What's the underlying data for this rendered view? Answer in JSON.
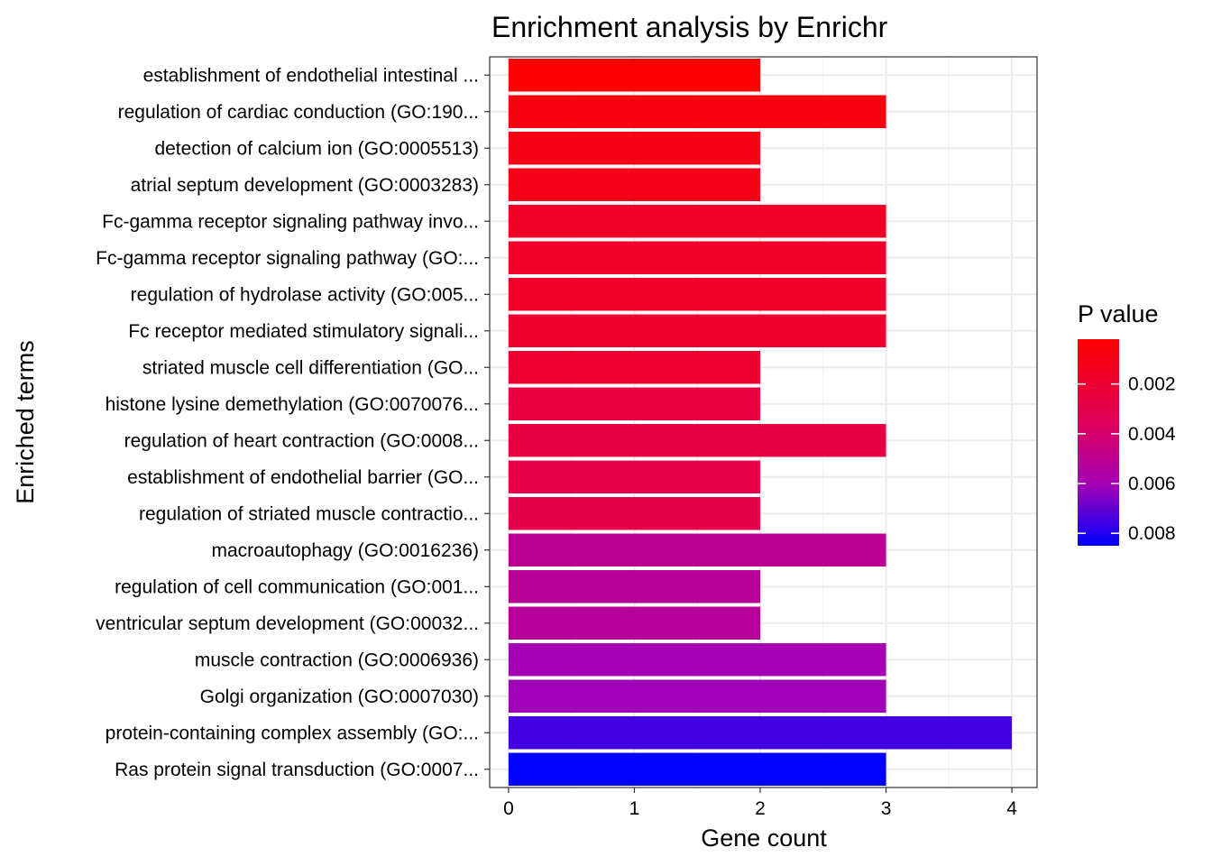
{
  "chart_data": {
    "type": "bar",
    "orientation": "horizontal",
    "title": "Enrichment analysis by Enrichr",
    "xlabel": "Gene count",
    "ylabel": "Enriched terms",
    "xlim": [
      -0.15,
      4.2
    ],
    "xticks": [
      "0",
      "1",
      "2",
      "3",
      "4"
    ],
    "grid": true,
    "legend_title": "P value",
    "legend_position": "right",
    "legend_range": [
      0.0002,
      0.0085
    ],
    "legend_ticks": [
      {
        "value": 0.002,
        "label": "0.002"
      },
      {
        "value": 0.004,
        "label": "0.004"
      },
      {
        "value": 0.006,
        "label": "0.006"
      },
      {
        "value": 0.008,
        "label": "0.008"
      }
    ],
    "color_low": "#ff0000",
    "color_high": "#0000ff",
    "categories": [
      "establishment of endothelial intestinal ...",
      "regulation of cardiac conduction (GO:190...",
      "detection of calcium ion (GO:0005513)",
      "atrial septum development (GO:0003283)",
      "Fc-gamma receptor signaling pathway invo...",
      "Fc-gamma receptor signaling pathway (GO:...",
      "regulation of hydrolase activity (GO:005...",
      "Fc receptor mediated stimulatory signali...",
      "striated muscle cell differentiation (GO...",
      "histone lysine demethylation (GO:0070076...",
      "regulation of heart contraction (GO:0008...",
      "establishment of endothelial barrier (GO...",
      "regulation of striated muscle contractio...",
      "macroautophagy (GO:0016236)",
      "regulation of cell communication (GO:001...",
      "ventricular septum development (GO:00032...",
      "muscle contraction (GO:0006936)",
      "Golgi organization (GO:0007030)",
      "protein-containing complex assembly (GO:...",
      "Ras protein signal transduction (GO:0007..."
    ],
    "values": [
      2,
      3,
      2,
      2,
      3,
      3,
      3,
      3,
      2,
      2,
      3,
      2,
      2,
      3,
      2,
      2,
      3,
      3,
      4,
      3
    ],
    "p_values": [
      0.0002,
      0.0008,
      0.001,
      0.0011,
      0.0016,
      0.0017,
      0.0018,
      0.0019,
      0.002,
      0.0026,
      0.0027,
      0.0029,
      0.003,
      0.0051,
      0.0052,
      0.0053,
      0.006,
      0.0061,
      0.0075,
      0.0085
    ]
  }
}
